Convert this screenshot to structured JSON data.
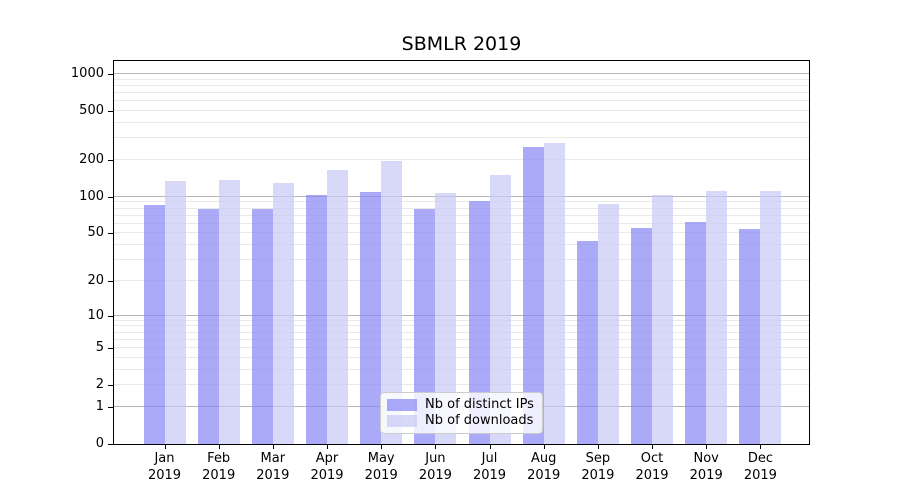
{
  "title": "SBMLR 2019",
  "chart_data": {
    "type": "bar",
    "title": "SBMLR 2019",
    "categories": [
      "Jan",
      "Feb",
      "Mar",
      "Apr",
      "May",
      "Jun",
      "Jul",
      "Aug",
      "Sep",
      "Oct",
      "Nov",
      "Dec"
    ],
    "category_year": "2019",
    "series": [
      {
        "name": "Nb of distinct IPs",
        "color": "rgba(137,137,245,0.72)",
        "values": [
          85,
          80,
          79,
          103,
          110,
          79,
          92,
          255,
          43,
          55,
          62,
          54
        ]
      },
      {
        "name": "Nb of downloads",
        "color": "rgba(201,201,246,0.72)",
        "values": [
          135,
          138,
          130,
          167,
          195,
          107,
          151,
          277,
          87,
          103,
          111,
          111
        ]
      }
    ],
    "yscale": "log10(1+x)",
    "ylim": [
      0,
      1275
    ],
    "ytick_values": [
      0,
      1,
      2,
      5,
      10,
      20,
      50,
      100,
      200,
      500,
      1000
    ],
    "ytick_labels": [
      "0",
      "1",
      "2",
      "5",
      "10",
      "20",
      "50",
      "100",
      "200",
      "500",
      "1000"
    ],
    "grid": true,
    "legend_position": "bottom-center",
    "colors": {
      "major_grid": "#b5b5b5",
      "minor_grid": "#e9e9e9",
      "spine": "#000000",
      "text": "#000000"
    }
  }
}
